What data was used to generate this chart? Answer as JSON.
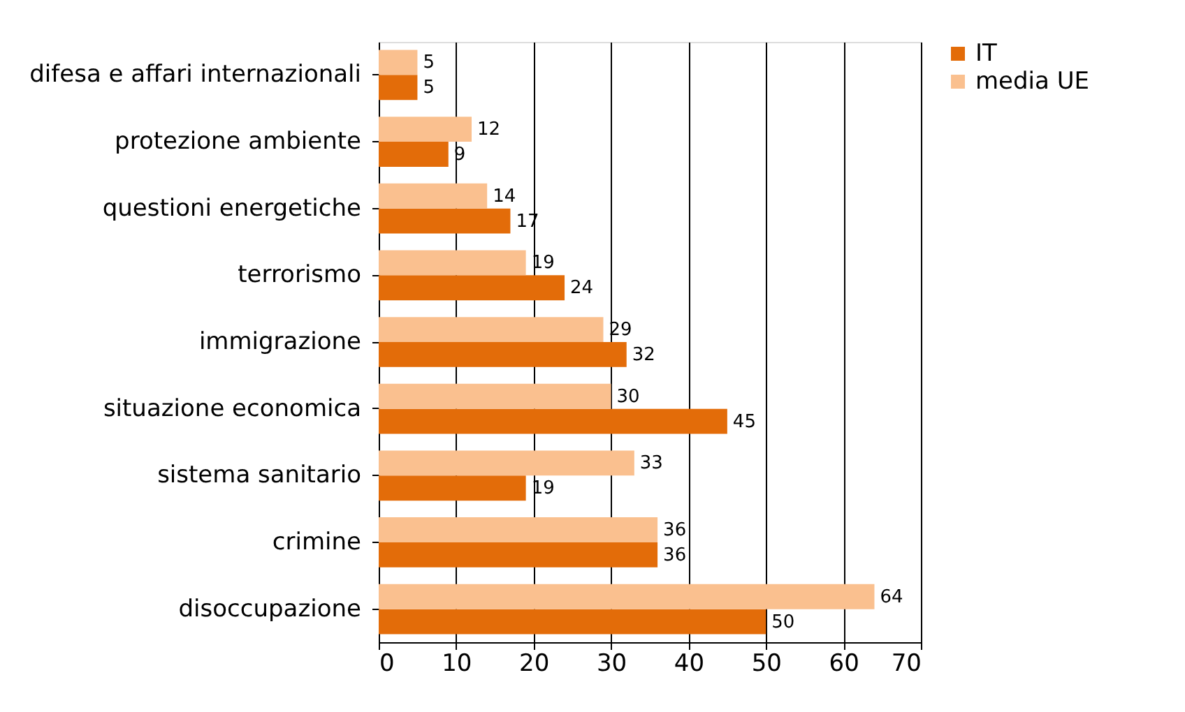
{
  "chart_data": {
    "type": "bar",
    "orientation": "horizontal",
    "categories": [
      "difesa e affari internazionali",
      "protezione ambiente",
      "questioni energetiche",
      "terrorismo",
      "immigrazione",
      "situazione economica",
      "sistema sanitario",
      "crimine",
      "disoccupazione"
    ],
    "series": [
      {
        "name": "IT",
        "color": "#e36c09",
        "values": [
          5,
          9,
          17,
          24,
          32,
          45,
          19,
          36,
          50
        ]
      },
      {
        "name": "media UE",
        "color": "#fac08f",
        "values": [
          5,
          12,
          14,
          19,
          29,
          30,
          33,
          36,
          64
        ]
      }
    ],
    "xlim": [
      0,
      70
    ],
    "xticks": [
      0,
      10,
      20,
      30,
      40,
      50,
      60,
      70
    ],
    "grid": "x",
    "legend": "right",
    "data_labels": true
  }
}
